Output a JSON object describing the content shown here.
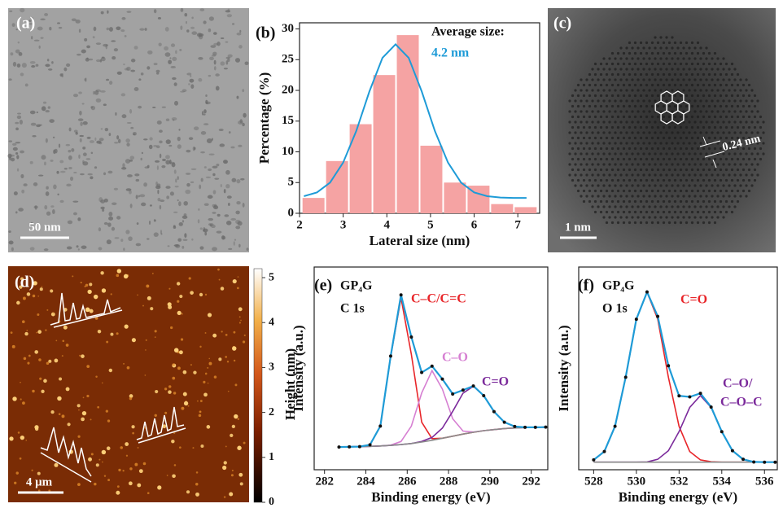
{
  "images": {
    "a": {
      "label": "(a)",
      "scale_bar": "50 nm"
    },
    "c": {
      "label": "(c)",
      "spacing": "0.24 nm",
      "scale_bar": "1 nm"
    },
    "d": {
      "label": "(d)",
      "scale_bar": "4 μm",
      "colorbar": {
        "label": "Height (nm)",
        "lim": [
          0,
          5.2
        ],
        "ticks": [
          0,
          1,
          2,
          3,
          4,
          5
        ]
      }
    }
  },
  "chart_data": [
    {
      "type": "histogram",
      "panel_label": "(b)",
      "xlabel": "Lateral size (nm)",
      "ylabel": "Percentage (%)",
      "annotations": [
        {
          "text": "Average size:"
        },
        {
          "text": "4.2 nm",
          "color": "#1e9bd7"
        }
      ],
      "bins": [
        2.05,
        2.59,
        3.13,
        3.67,
        4.21,
        4.75,
        5.29,
        5.83,
        6.37,
        6.91,
        7.45
      ],
      "values": [
        2.5,
        8.5,
        14.5,
        22.5,
        29,
        11,
        5,
        4.5,
        1.5,
        1
      ],
      "color": "#f5a3a3",
      "fit": {
        "color": "#1e9bd7",
        "x": [
          2.1,
          2.4,
          2.7,
          3.0,
          3.3,
          3.6,
          3.9,
          4.2,
          4.5,
          4.8,
          5.1,
          5.4,
          5.7,
          6.0,
          6.3,
          6.6,
          6.9,
          7.2
        ],
        "values": [
          2.78,
          3.41,
          5.0,
          8.25,
          13.4,
          19.8,
          25.3,
          27.5,
          25.3,
          19.8,
          13.4,
          8.25,
          5.0,
          3.41,
          2.78,
          2.57,
          2.5,
          2.5
        ]
      },
      "xlim": [
        2,
        7.5
      ],
      "ylim": [
        0,
        31
      ],
      "xticks": [
        2,
        3,
        4,
        5,
        6,
        7
      ],
      "yticks": [
        0,
        5,
        10,
        15,
        20,
        25,
        30
      ]
    },
    {
      "type": "line",
      "panel_label": "(e)",
      "sample": "GP₄G",
      "region": "C 1s",
      "xlabel": "Binding energy (eV)",
      "ylabel": "Intensity (a.u.)",
      "xlim": [
        281.5,
        292.8
      ],
      "ylim": [
        0.05,
        1.04
      ],
      "xticks": [
        282,
        284,
        286,
        288,
        290,
        292
      ],
      "x": [
        282.7,
        283.2,
        283.7,
        284.2,
        284.7,
        285.2,
        285.7,
        286.2,
        286.7,
        287.2,
        287.7,
        288.2,
        288.7,
        289.2,
        289.7,
        290.2,
        290.7,
        291.2,
        291.7,
        292.2,
        292.7
      ],
      "series": [
        {
          "name": "C–C/C=C",
          "color": "#e8262a",
          "values": [
            0.161,
            0.162,
            0.163,
            0.172,
            0.263,
            0.604,
            0.889,
            0.613,
            0.282,
            0.202,
            0.204,
            0.214,
            0.224,
            0.233,
            0.241,
            0.246,
            0.251,
            0.254,
            0.256,
            0.257,
            0.258
          ]
        },
        {
          "name": "C–O",
          "color": "#d67fd2",
          "values": [
            0.161,
            0.162,
            0.163,
            0.164,
            0.166,
            0.17,
            0.188,
            0.263,
            0.425,
            0.534,
            0.444,
            0.299,
            0.239,
            0.234,
            0.241,
            0.246,
            0.251,
            0.254,
            0.256,
            0.257,
            0.258
          ]
        },
        {
          "name": "C=O",
          "color": "#7b2a9b",
          "values": [
            0.161,
            0.162,
            0.163,
            0.164,
            0.166,
            0.169,
            0.173,
            0.178,
            0.188,
            0.208,
            0.253,
            0.335,
            0.424,
            0.458,
            0.412,
            0.334,
            0.282,
            0.261,
            0.257,
            0.257,
            0.258
          ]
        },
        {
          "color": "#8a8a8a",
          "values": [
            0.161,
            0.162,
            0.163,
            0.164,
            0.166,
            0.169,
            0.173,
            0.178,
            0.185,
            0.194,
            0.204,
            0.214,
            0.224,
            0.233,
            0.241,
            0.246,
            0.251,
            0.254,
            0.256,
            0.257,
            0.258
          ]
        },
        {
          "color": "#1e9bd7",
          "marker": true,
          "values": [
            0.161,
            0.162,
            0.163,
            0.172,
            0.263,
            0.605,
            0.904,
            0.698,
            0.525,
            0.556,
            0.493,
            0.42,
            0.439,
            0.459,
            0.412,
            0.334,
            0.282,
            0.261,
            0.257,
            0.257,
            0.258
          ]
        }
      ]
    },
    {
      "type": "line",
      "panel_label": "(f)",
      "sample": "GP₄G",
      "region": "O 1s",
      "xlabel": "Binding energy (eV)",
      "ylabel": "Intensity (a.u.)",
      "xlim": [
        527.3,
        536.6
      ],
      "ylim": [
        0.05,
        1.04
      ],
      "xticks": [
        528,
        530,
        532,
        534,
        536
      ],
      "x": [
        528,
        528.5,
        529,
        529.5,
        530,
        530.5,
        531,
        531.5,
        532,
        532.5,
        533,
        533.5,
        534,
        534.5,
        535,
        535.5,
        536,
        536.5
      ],
      "series": [
        {
          "name": "C=O",
          "color": "#e8262a",
          "values": [
            0.098,
            0.139,
            0.262,
            0.502,
            0.785,
            0.917,
            0.785,
            0.502,
            0.262,
            0.139,
            0.098,
            0.089,
            0.087,
            0.087,
            0.087,
            0.087,
            0.087,
            0.087
          ]
        },
        {
          "name": [
            "C–O/",
            "C–O–C"
          ],
          "color": "#7b2a9b",
          "values": [
            0.087,
            0.087,
            0.087,
            0.087,
            0.087,
            0.088,
            0.101,
            0.143,
            0.236,
            0.354,
            0.412,
            0.354,
            0.236,
            0.143,
            0.101,
            0.088,
            0.087,
            0.087
          ]
        },
        {
          "color": "#8a8a8a",
          "values": [
            0.087,
            0.087,
            0.087,
            0.087,
            0.087,
            0.087,
            0.087,
            0.087,
            0.087,
            0.087,
            0.087,
            0.087,
            0.087,
            0.087,
            0.087,
            0.087,
            0.087,
            0.087
          ]
        },
        {
          "color": "#1e9bd7",
          "marker": true,
          "values": [
            0.098,
            0.139,
            0.262,
            0.502,
            0.785,
            0.918,
            0.799,
            0.558,
            0.411,
            0.406,
            0.423,
            0.356,
            0.236,
            0.143,
            0.101,
            0.088,
            0.087,
            0.087
          ]
        }
      ]
    }
  ]
}
